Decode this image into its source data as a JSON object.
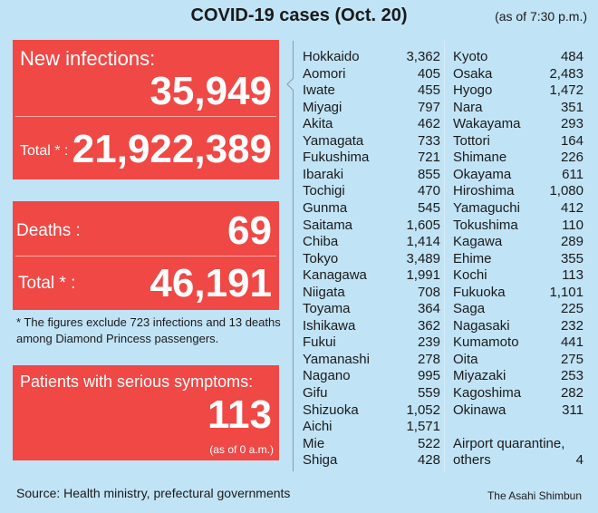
{
  "header": {
    "title": "COVID-19 cases (Oct. 20)",
    "as_of": "(as of 7:30 p.m.)"
  },
  "infections": {
    "label": "New infections:",
    "new": "35,949",
    "total_label": "Total * :",
    "total": "21,922,389"
  },
  "deaths": {
    "label": "Deaths :",
    "new": "69",
    "total_label": "Total * :",
    "total": "46,191"
  },
  "footnote": "* The figures exclude 723 infections and 13 deaths among Diamond Princess passengers.",
  "serious": {
    "label": "Patients with serious symptoms:",
    "value": "113",
    "note": "(as of 0 a.m.)"
  },
  "prefectures_left": [
    {
      "name": "Hokkaido",
      "value": "3,362"
    },
    {
      "name": "Aomori",
      "value": "405"
    },
    {
      "name": "Iwate",
      "value": "455"
    },
    {
      "name": "Miyagi",
      "value": "797"
    },
    {
      "name": "Akita",
      "value": "462"
    },
    {
      "name": "Yamagata",
      "value": "733"
    },
    {
      "name": "Fukushima",
      "value": "721"
    },
    {
      "name": "Ibaraki",
      "value": "855"
    },
    {
      "name": "Tochigi",
      "value": "470"
    },
    {
      "name": "Gunma",
      "value": "545"
    },
    {
      "name": "Saitama",
      "value": "1,605"
    },
    {
      "name": "Chiba",
      "value": "1,414"
    },
    {
      "name": "Tokyo",
      "value": "3,489"
    },
    {
      "name": "Kanagawa",
      "value": "1,991"
    },
    {
      "name": "Niigata",
      "value": "708"
    },
    {
      "name": "Toyama",
      "value": "364"
    },
    {
      "name": "Ishikawa",
      "value": "362"
    },
    {
      "name": "Fukui",
      "value": "239"
    },
    {
      "name": "Yamanashi",
      "value": "278"
    },
    {
      "name": "Nagano",
      "value": "995"
    },
    {
      "name": "Gifu",
      "value": "559"
    },
    {
      "name": "Shizuoka",
      "value": "1,052"
    },
    {
      "name": "Aichi",
      "value": "1,571"
    },
    {
      "name": "Mie",
      "value": "522"
    },
    {
      "name": "Shiga",
      "value": "428"
    }
  ],
  "prefectures_right": [
    {
      "name": "Kyoto",
      "value": "484"
    },
    {
      "name": "Osaka",
      "value": "2,483"
    },
    {
      "name": "Hyogo",
      "value": "1,472"
    },
    {
      "name": "Nara",
      "value": "351"
    },
    {
      "name": "Wakayama",
      "value": "293"
    },
    {
      "name": "Tottori",
      "value": "164"
    },
    {
      "name": "Shimane",
      "value": "226"
    },
    {
      "name": "Okayama",
      "value": "611"
    },
    {
      "name": "Hiroshima",
      "value": "1,080"
    },
    {
      "name": "Yamaguchi",
      "value": "412"
    },
    {
      "name": "Tokushima",
      "value": "110"
    },
    {
      "name": "Kagawa",
      "value": "289"
    },
    {
      "name": "Ehime",
      "value": "355"
    },
    {
      "name": "Kochi",
      "value": "113"
    },
    {
      "name": "Fukuoka",
      "value": "1,101"
    },
    {
      "name": "Saga",
      "value": "225"
    },
    {
      "name": "Nagasaki",
      "value": "232"
    },
    {
      "name": "Kumamoto",
      "value": "441"
    },
    {
      "name": "Oita",
      "value": "275"
    },
    {
      "name": "Miyazaki",
      "value": "253"
    },
    {
      "name": "Kagoshima",
      "value": "282"
    },
    {
      "name": "Okinawa",
      "value": "311"
    }
  ],
  "airport": {
    "label1": "Airport quarantine,",
    "label2": "others",
    "value": "4"
  },
  "source": "Source: Health ministry, prefectural governments",
  "credit": "The Asahi Shimbun",
  "colors": {
    "background": "#c1e3f6",
    "box": "#ef4845"
  }
}
